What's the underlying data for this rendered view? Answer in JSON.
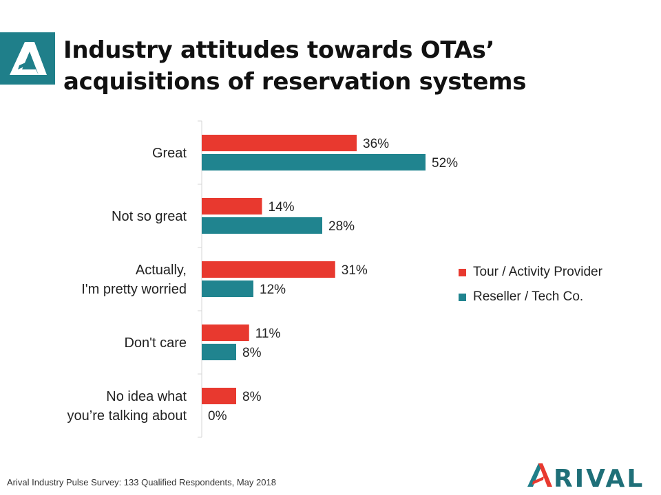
{
  "title": {
    "line1": "Industry attitudes towards OTAs’",
    "line2": "acquisitions of reservation systems"
  },
  "colors": {
    "tour": "#e8392f",
    "reseller": "#20848f",
    "logo_bg": "#1f7f8a"
  },
  "legend": [
    {
      "label": "Tour / Activity Provider",
      "color": "#e8392f"
    },
    {
      "label": "Reseller / Tech Co.",
      "color": "#20848f"
    }
  ],
  "chart_data": {
    "type": "bar",
    "orientation": "horizontal",
    "categories": [
      [
        "Great"
      ],
      [
        "Not so great"
      ],
      [
        "Actually,",
        "I'm pretty worried"
      ],
      [
        "Don't care"
      ],
      [
        "No idea what",
        "you’re talking about"
      ]
    ],
    "series": [
      {
        "name": "Tour / Activity Provider",
        "values": [
          36,
          14,
          31,
          11,
          8
        ],
        "labels": [
          "36%",
          "14%",
          "31%",
          "11%",
          "8%"
        ]
      },
      {
        "name": "Reseller / Tech Co.",
        "values": [
          52,
          28,
          12,
          8,
          0
        ],
        "labels": [
          "52%",
          "28%",
          "12%",
          "8%",
          "0%"
        ]
      }
    ],
    "value_unit": "%",
    "legend_position": "right",
    "grid": false
  },
  "footnote": "Arival Industry Pulse Survey: 133 Qualified Respondents, May 2018",
  "brand": {
    "name": "ARIVAL",
    "rest": "RIVAL"
  }
}
